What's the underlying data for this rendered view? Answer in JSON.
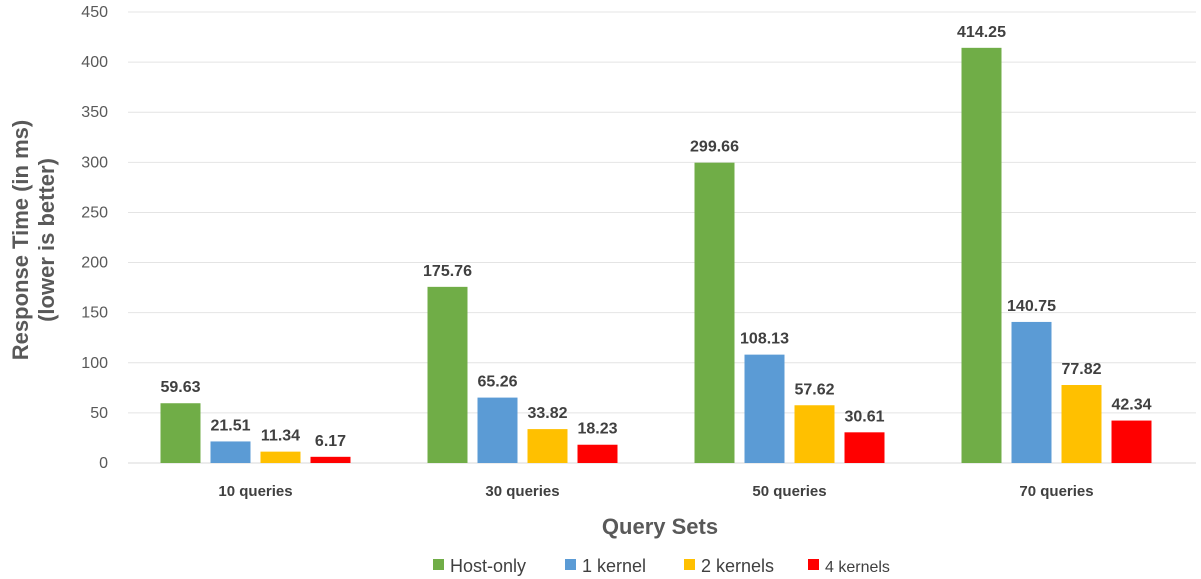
{
  "chart_data": {
    "type": "bar",
    "xlabel": "Query Sets",
    "ylabel_lines": [
      "Response Time (in ms)",
      "(lower is better)"
    ],
    "ylim": [
      0,
      450
    ],
    "yticks": [
      0,
      50,
      100,
      150,
      200,
      250,
      300,
      350,
      400,
      450
    ],
    "categories": [
      "10 queries",
      "30 queries",
      "50 queries",
      "70 queries"
    ],
    "series": [
      {
        "name": "Host-only",
        "color": "#70ad47",
        "values": [
          59.63,
          175.76,
          299.66,
          414.25
        ],
        "labels": [
          "59.63",
          "175.76",
          "299.66",
          "414.25"
        ]
      },
      {
        "name": "1 kernel",
        "color": "#5b9bd5",
        "values": [
          21.51,
          65.26,
          108.13,
          140.75
        ],
        "labels": [
          "21.51",
          "65.26",
          "108.13",
          "140.75"
        ]
      },
      {
        "name": "2 kernels",
        "color": "#ffc000",
        "values": [
          11.34,
          33.82,
          57.62,
          77.82
        ],
        "labels": [
          "11.34",
          "33.82",
          "57.62",
          "77.82"
        ]
      },
      {
        "name": "4 kernels",
        "color": "#ff0000",
        "values": [
          6.17,
          18.23,
          30.61,
          42.34
        ],
        "labels": [
          "6.17",
          "18.23",
          "30.61",
          "42.34"
        ]
      }
    ],
    "legend_position": "bottom",
    "grid": true
  }
}
